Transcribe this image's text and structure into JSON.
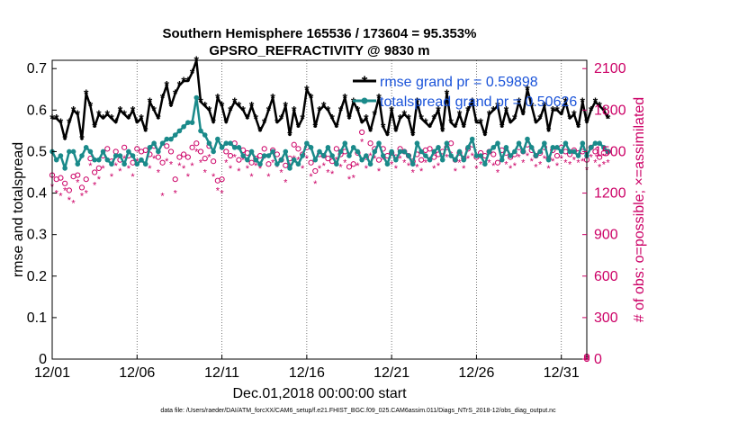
{
  "chart_data": {
    "type": "line",
    "title": "Southern Hemisphere 165536 / 173604 = 95.353%",
    "subtitle": "GPSRO_REFRACTIVITY @ 9830 m",
    "xlabel": "Dec.01,2018 00:00:00 start",
    "ylabel": "rmse and totalspread",
    "y2label": "# of obs: o=possible; ×=assimilated",
    "x_ticks": [
      "12/01",
      "12/06",
      "12/11",
      "12/16",
      "12/21",
      "12/26",
      "12/31"
    ],
    "xlim": [
      0,
      31.5
    ],
    "ylim": [
      0,
      0.72
    ],
    "y_ticks": [
      "0",
      "0.1",
      "0.2",
      "0.3",
      "0.4",
      "0.5",
      "0.6",
      "0.7"
    ],
    "y2lim": [
      0,
      2160
    ],
    "y2_ticks": [
      "0",
      "300",
      "600",
      "900",
      "1200",
      "1500",
      "1800",
      "2100"
    ],
    "legend": [
      "rmse grand pr = 0.59898",
      "totalspread grand pr = 0.50626"
    ],
    "series": [
      {
        "name": "rmse",
        "color": "#000000",
        "x_start": 0.0,
        "x_step": 0.25,
        "values": [
          0.58,
          0.58,
          0.57,
          0.53,
          0.57,
          0.6,
          0.59,
          0.53,
          0.64,
          0.61,
          0.56,
          0.59,
          0.58,
          0.59,
          0.58,
          0.57,
          0.6,
          0.59,
          0.58,
          0.6,
          0.57,
          0.58,
          0.55,
          0.62,
          0.6,
          0.58,
          0.63,
          0.66,
          0.61,
          0.64,
          0.66,
          0.67,
          0.67,
          0.69,
          0.72,
          0.62,
          0.61,
          0.6,
          0.57,
          0.63,
          0.61,
          0.57,
          0.6,
          0.62,
          0.61,
          0.6,
          0.58,
          0.61,
          0.58,
          0.55,
          0.57,
          0.6,
          0.63,
          0.57,
          0.58,
          0.61,
          0.54,
          0.6,
          0.56,
          0.58,
          0.65,
          0.63,
          0.56,
          0.6,
          0.61,
          0.6,
          0.58,
          0.56,
          0.6,
          0.63,
          0.58,
          0.62,
          0.6,
          0.57,
          0.58,
          0.55,
          0.59,
          0.63,
          0.56,
          0.54,
          0.6,
          0.55,
          0.58,
          0.59,
          0.58,
          0.54,
          0.62,
          0.58,
          0.57,
          0.56,
          0.58,
          0.6,
          0.55,
          0.64,
          0.57,
          0.56,
          0.59,
          0.56,
          0.6,
          0.62,
          0.57,
          0.57,
          0.54,
          0.59,
          0.6,
          0.61,
          0.56,
          0.6,
          0.57,
          0.58,
          0.62,
          0.59,
          0.65,
          0.61,
          0.57,
          0.58,
          0.61,
          0.55,
          0.6,
          0.6,
          0.59,
          0.62,
          0.58,
          0.59,
          0.56,
          0.62,
          0.57,
          0.6,
          0.62,
          0.61,
          0.6,
          0.58
        ]
      },
      {
        "name": "totalspread",
        "color": "#1a8a8a",
        "x_start": 0.0,
        "x_step": 0.25,
        "values": [
          0.5,
          0.48,
          0.49,
          0.46,
          0.5,
          0.5,
          0.47,
          0.49,
          0.51,
          0.5,
          0.48,
          0.48,
          0.5,
          0.48,
          0.47,
          0.49,
          0.49,
          0.47,
          0.5,
          0.49,
          0.47,
          0.48,
          0.47,
          0.51,
          0.52,
          0.5,
          0.52,
          0.53,
          0.53,
          0.54,
          0.55,
          0.56,
          0.57,
          0.57,
          0.63,
          0.55,
          0.54,
          0.52,
          0.5,
          0.53,
          0.51,
          0.52,
          0.52,
          0.51,
          0.51,
          0.49,
          0.48,
          0.5,
          0.48,
          0.47,
          0.49,
          0.49,
          0.5,
          0.47,
          0.48,
          0.5,
          0.46,
          0.48,
          0.47,
          0.49,
          0.52,
          0.51,
          0.48,
          0.5,
          0.49,
          0.51,
          0.49,
          0.47,
          0.5,
          0.52,
          0.49,
          0.51,
          0.5,
          0.48,
          0.49,
          0.47,
          0.5,
          0.52,
          0.49,
          0.47,
          0.5,
          0.48,
          0.5,
          0.5,
          0.49,
          0.47,
          0.52,
          0.5,
          0.49,
          0.48,
          0.5,
          0.51,
          0.48,
          0.52,
          0.49,
          0.48,
          0.5,
          0.48,
          0.51,
          0.53,
          0.49,
          0.49,
          0.47,
          0.5,
          0.51,
          0.52,
          0.48,
          0.51,
          0.49,
          0.5,
          0.52,
          0.5,
          0.53,
          0.51,
          0.49,
          0.5,
          0.52,
          0.48,
          0.51,
          0.51,
          0.5,
          0.52,
          0.5,
          0.5,
          0.49,
          0.52,
          0.49,
          0.51,
          0.52,
          0.52,
          0.51,
          0.5
        ]
      }
    ],
    "obs_possible": {
      "marker": "o",
      "color": "#cc0066",
      "x_start": 0.0,
      "x_step": 0.25,
      "values": [
        1330,
        1300,
        1310,
        1270,
        1220,
        1320,
        1330,
        1240,
        1300,
        1450,
        1350,
        1380,
        1470,
        1520,
        1430,
        1500,
        1440,
        1530,
        1470,
        1420,
        1520,
        1500,
        1510,
        1480,
        1540,
        1460,
        1420,
        1540,
        1500,
        1300,
        1460,
        1480,
        1460,
        1530,
        1560,
        1500,
        1450,
        1540,
        1430,
        1290,
        1300,
        1500,
        1470,
        1560,
        1440,
        1510,
        1490,
        1420,
        1450,
        1470,
        1520,
        1410,
        1510,
        1480,
        1440,
        1400,
        1450,
        1550,
        1520,
        1480,
        1530,
        1420,
        1360,
        1480,
        1470,
        1450,
        1430,
        1520,
        1480,
        1500,
        1390,
        1410,
        1490,
        1640,
        1460,
        1560,
        1520,
        1440,
        1520,
        1470,
        1490,
        1460,
        1520,
        1500,
        1470,
        1430,
        1480,
        1440,
        1510,
        1520,
        1460,
        1480,
        1500,
        1530,
        1560,
        1440,
        1490,
        1450,
        1520,
        1550,
        1460,
        1490,
        1470,
        1500,
        1480,
        1420,
        1510,
        1490,
        1460,
        1480,
        1530,
        1500,
        1550,
        1510,
        1470,
        1490,
        1530,
        1450,
        1510,
        1470,
        1530,
        1500,
        1480,
        1510,
        1490,
        1500,
        1440,
        1530,
        1500,
        1460,
        1490,
        1500
      ]
    },
    "obs_assimilated": {
      "marker": "x",
      "color": "#cc0066",
      "x_start": 0.0,
      "x_step": 0.25,
      "values": [
        1250,
        1200,
        1180,
        1220,
        1150,
        1130,
        1280,
        1180,
        1200,
        1400,
        1260,
        1300,
        1380,
        1430,
        1320,
        1400,
        1360,
        1450,
        1380,
        1320,
        1430,
        1420,
        1400,
        1380,
        1450,
        1350,
        1180,
        1430,
        1410,
        1200,
        1400,
        1380,
        1320,
        1400,
        1500,
        1420,
        1350,
        1460,
        1320,
        1220,
        1200,
        1420,
        1380,
        1460,
        1360,
        1440,
        1380,
        1320,
        1400,
        1380,
        1450,
        1320,
        1420,
        1390,
        1350,
        1280,
        1400,
        1450,
        1440,
        1380,
        1450,
        1320,
        1270,
        1380,
        1400,
        1350,
        1340,
        1440,
        1390,
        1420,
        1300,
        1310,
        1400,
        1570,
        1380,
        1470,
        1450,
        1360,
        1440,
        1400,
        1410,
        1380,
        1450,
        1420,
        1400,
        1350,
        1390,
        1360,
        1420,
        1440,
        1380,
        1400,
        1430,
        1460,
        1480,
        1360,
        1420,
        1380,
        1450,
        1470,
        1380,
        1410,
        1400,
        1420,
        1400,
        1350,
        1430,
        1410,
        1380,
        1400,
        1460,
        1420,
        1470,
        1430,
        1390,
        1410,
        1450,
        1380,
        1430,
        1400,
        1450,
        1420,
        1410,
        1440,
        1420,
        1430,
        1370,
        1460,
        1420,
        1390,
        1410,
        1420
      ]
    },
    "obs_end_marker": {
      "x": 31.5,
      "values": [
        0,
        10,
        20
      ]
    }
  },
  "footnote": "data file: /Users/raeder/DAI/ATM_forcXX/CAM6_setup/f.e21.FHIST_BGC.f09_025.CAM6assim.011/Diags_NTrS_2018-12/obs_diag_output.nc"
}
